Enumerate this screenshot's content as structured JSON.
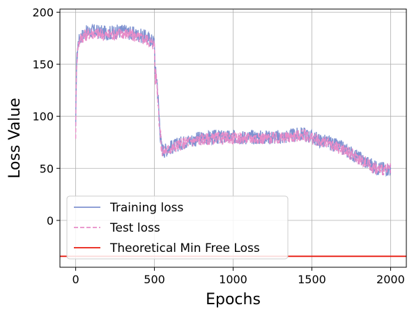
{
  "chart_data": {
    "type": "line",
    "xlabel": "Epochs",
    "ylabel": "Loss Value",
    "xlim": [
      -100,
      2100
    ],
    "ylim": [
      -45,
      203
    ],
    "xticks": [
      0,
      500,
      1000,
      1500,
      2000
    ],
    "yticks": [
      0,
      50,
      100,
      150,
      200
    ],
    "grid": true,
    "legend_position": "lower-left",
    "series": [
      {
        "name": "Training loss",
        "color": "#7f93d1",
        "style": "solid",
        "x": [
          0,
          5,
          15,
          30,
          60,
          100,
          150,
          200,
          250,
          300,
          350,
          400,
          450,
          490,
          500,
          505,
          515,
          530,
          545,
          560,
          600,
          700,
          800,
          900,
          1000,
          1100,
          1200,
          1300,
          1400,
          1450,
          1500,
          1550,
          1600,
          1700,
          1800,
          1850,
          1900,
          1950,
          2000
        ],
        "y": [
          85,
          150,
          170,
          176,
          180,
          182,
          181,
          180,
          181,
          182,
          180,
          178,
          176,
          172,
          172,
          140,
          138,
          100,
          70,
          67,
          70,
          76,
          79,
          80,
          80,
          80,
          80,
          80,
          82,
          83,
          80,
          77,
          75,
          69,
          60,
          56,
          51,
          50,
          50
        ],
        "noise": 7
      },
      {
        "name": "Test loss",
        "color": "#e88cc8",
        "style": "dashed",
        "x": [
          0,
          5,
          15,
          30,
          60,
          100,
          150,
          200,
          250,
          300,
          350,
          400,
          450,
          490,
          500,
          505,
          515,
          530,
          545,
          560,
          600,
          700,
          800,
          900,
          1000,
          1100,
          1200,
          1300,
          1400,
          1450,
          1500,
          1550,
          1600,
          1700,
          1800,
          1850,
          1900,
          1950,
          2000
        ],
        "y": [
          83,
          148,
          168,
          175,
          178,
          180,
          179,
          178,
          179,
          180,
          178,
          176,
          174,
          170,
          170,
          138,
          136,
          98,
          68,
          66,
          69,
          75,
          78,
          79,
          79,
          79,
          79,
          79,
          81,
          82,
          79,
          76,
          74,
          68,
          59,
          55,
          50,
          49,
          49
        ],
        "noise": 6
      },
      {
        "name": "Theoretical Min Free Loss",
        "color": "#e8190e",
        "style": "solid",
        "constant_y": -34.5
      }
    ]
  }
}
